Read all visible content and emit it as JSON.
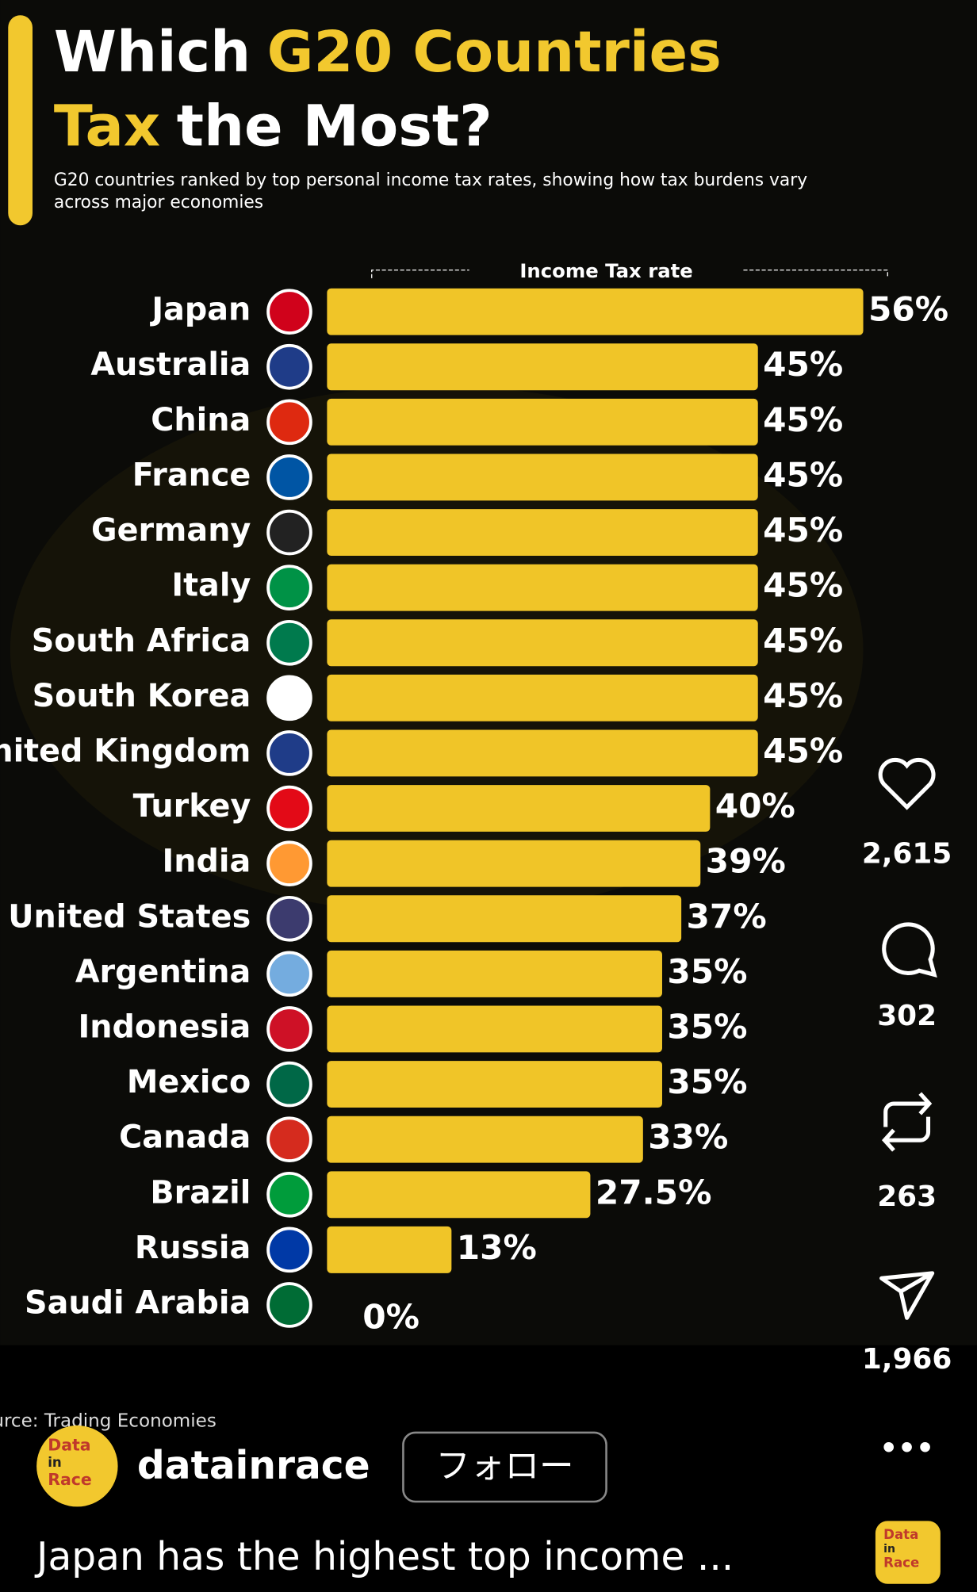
{
  "chart_data": {
    "type": "bar",
    "orientation": "horizontal",
    "title": [
      {
        "text": "Which",
        "color": "#ffffff"
      },
      {
        "text": "G20 Countries",
        "color": "#f2c82e"
      },
      {
        "text": "Tax",
        "color": "#f2c82e"
      },
      {
        "text": "the Most?",
        "color": "#ffffff"
      }
    ],
    "subtitle": [
      "G20 countries ranked by top personal income tax rates, showing how tax burdens vary",
      "across major economies"
    ],
    "axis_label": "Income Tax rate",
    "categories": [
      "Japan",
      "Australia",
      "China",
      "France",
      "Germany",
      "Italy",
      "South Africa",
      "South Korea",
      "United Kingdom",
      "Turkey",
      "India",
      "United States",
      "Argentina",
      "Indonesia",
      "Mexico",
      "Canada",
      "Brazil",
      "Russia",
      "Saudi Arabia"
    ],
    "values": [
      56,
      45,
      45,
      45,
      45,
      45,
      45,
      45,
      45,
      40,
      39,
      37,
      35,
      35,
      35,
      33,
      27.5,
      13,
      0
    ],
    "value_labels": [
      "56%",
      "45%",
      "45%",
      "45%",
      "45%",
      "45%",
      "45%",
      "45%",
      "45%",
      "40%",
      "39%",
      "37%",
      "35%",
      "35%",
      "35%",
      "33%",
      "27.5%",
      "13%",
      "0%"
    ],
    "color": "#f0c528",
    "source": "Source: Trading Economies"
  },
  "ui": {
    "likes": "2,615",
    "comments": "302",
    "reposts": "263",
    "shares": "1,966",
    "logo": [
      "Data",
      "in",
      "Race"
    ],
    "username": "datainrace",
    "follow": "フォロー",
    "caption": "Japan has the highest top income ..."
  }
}
